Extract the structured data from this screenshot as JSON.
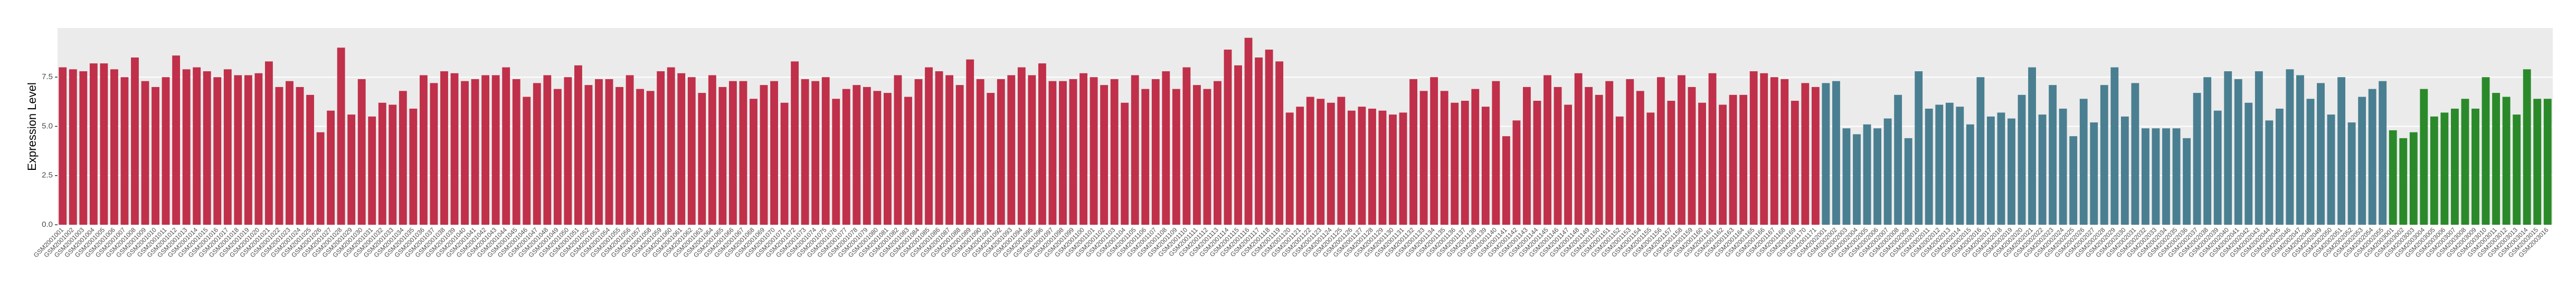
{
  "chart_data": {
    "type": "bar",
    "ylabel": "Expression Level",
    "ylim": [
      0,
      10
    ],
    "yticks": [
      {
        "value": 0,
        "label": "0.0"
      },
      2.5,
      {
        "value": 5,
        "label": "5.0"
      },
      7.5
    ],
    "grid": true,
    "series": [
      {
        "color": "#c0304a",
        "categories": [
          "GSM2001001",
          "GSM2001002",
          "GSM2001003",
          "GSM2001004",
          "GSM2001005",
          "GSM2001006",
          "GSM2001007",
          "GSM2001008",
          "GSM2001009",
          "GSM2001010",
          "GSM2001011",
          "GSM2001012",
          "GSM2001013",
          "GSM2001014",
          "GSM2001015",
          "GSM2001016",
          "GSM2001017",
          "GSM2001018",
          "GSM2001019",
          "GSM2001020",
          "GSM2001021",
          "GSM2001022",
          "GSM2001023",
          "GSM2001024",
          "GSM2001025",
          "GSM2001026",
          "GSM2001027",
          "GSM2001028",
          "GSM2001029",
          "GSM2001030",
          "GSM2001031",
          "GSM2001032",
          "GSM2001033",
          "GSM2001034",
          "GSM2001035",
          "GSM2001036",
          "GSM2001037",
          "GSM2001038",
          "GSM2001039",
          "GSM2001040",
          "GSM2001041",
          "GSM2001042",
          "GSM2001043",
          "GSM2001044",
          "GSM2001045",
          "GSM2001046",
          "GSM2001047",
          "GSM2001048",
          "GSM2001049",
          "GSM2001050",
          "GSM2001051",
          "GSM2001052",
          "GSM2001053",
          "GSM2001054",
          "GSM2001055",
          "GSM2001056",
          "GSM2001057",
          "GSM2001058",
          "GSM2001059",
          "GSM2001060",
          "GSM2001061",
          "GSM2001062",
          "GSM2001063",
          "GSM2001064",
          "GSM2001065",
          "GSM2001066",
          "GSM2001067",
          "GSM2001068",
          "GSM2001069",
          "GSM2001070",
          "GSM2001071",
          "GSM2001072",
          "GSM2001073",
          "GSM2001074",
          "GSM2001075",
          "GSM2001076",
          "GSM2001077",
          "GSM2001078",
          "GSM2001079",
          "GSM2001080",
          "GSM2001081",
          "GSM2001082",
          "GSM2001083",
          "GSM2001084",
          "GSM2001085",
          "GSM2001086",
          "GSM2001087",
          "GSM2001088",
          "GSM2001089",
          "GSM2001090",
          "GSM2001091",
          "GSM2001092",
          "GSM2001093",
          "GSM2001094",
          "GSM2001095",
          "GSM2001096",
          "GSM2001097",
          "GSM2001098",
          "GSM2001099",
          "GSM2001100",
          "GSM2001101",
          "GSM2001102",
          "GSM2001103",
          "GSM2001104",
          "GSM2001105",
          "GSM2001106",
          "GSM2001107",
          "GSM2001108",
          "GSM2001109",
          "GSM2001110",
          "GSM2001111",
          "GSM2001112",
          "GSM2001113",
          "GSM2001114",
          "GSM2001115",
          "GSM2001116",
          "GSM2001117",
          "GSM2001118",
          "GSM2001119",
          "GSM2001120",
          "GSM2001121",
          "GSM2001122",
          "GSM2001123",
          "GSM2001124",
          "GSM2001125",
          "GSM2001126",
          "GSM2001127",
          "GSM2001128",
          "GSM2001129",
          "GSM2001130",
          "GSM2001131",
          "GSM2001132",
          "GSM2001133",
          "GSM2001134",
          "GSM2001135",
          "GSM2001136",
          "GSM2001137",
          "GSM2001138",
          "GSM2001139",
          "GSM2001140",
          "GSM2001141",
          "GSM2001142",
          "GSM2001143",
          "GSM2001144",
          "GSM2001145",
          "GSM2001146",
          "GSM2001147",
          "GSM2001148",
          "GSM2001149",
          "GSM2001150",
          "GSM2001151",
          "GSM2001152",
          "GSM2001153",
          "GSM2001154",
          "GSM2001155",
          "GSM2001156",
          "GSM2001157",
          "GSM2001158",
          "GSM2001159",
          "GSM2001160",
          "GSM2001161",
          "GSM2001162",
          "GSM2001163",
          "GSM2001164",
          "GSM2001165",
          "GSM2001166",
          "GSM2001167",
          "GSM2001168",
          "GSM2001169",
          "GSM2001170",
          "GSM2001171"
        ],
        "values": [
          8.0,
          7.9,
          7.8,
          8.2,
          8.2,
          7.9,
          7.5,
          8.5,
          7.3,
          7.0,
          7.5,
          8.6,
          7.9,
          8.0,
          7.8,
          7.5,
          7.9,
          7.6,
          7.6,
          7.7,
          8.3,
          7.0,
          7.3,
          7.0,
          6.6,
          4.7,
          5.8,
          9.0,
          5.6,
          7.4,
          5.5,
          6.2,
          6.1,
          6.8,
          5.9,
          7.6,
          7.2,
          7.8,
          7.7,
          7.3,
          7.4,
          7.6,
          7.6,
          8.0,
          7.4,
          6.5,
          7.2,
          7.6,
          6.9,
          7.5,
          8.1,
          7.1,
          7.4,
          7.4,
          7.0,
          7.6,
          6.9,
          6.8,
          7.8,
          8.0,
          7.7,
          7.5,
          6.7,
          7.6,
          7.0,
          7.3,
          7.3,
          6.4,
          7.1,
          7.3,
          6.2,
          8.3,
          7.4,
          7.3,
          7.5,
          6.4,
          6.9,
          7.1,
          7.0,
          6.8,
          6.7,
          7.6,
          6.5,
          7.4,
          8.0,
          7.8,
          7.6,
          7.1,
          8.4,
          7.4,
          6.7,
          7.4,
          7.6,
          8.0,
          7.6,
          8.2,
          7.3,
          7.3,
          7.4,
          7.7,
          7.5,
          7.1,
          7.4,
          6.2,
          7.6,
          6.9,
          7.4,
          7.8,
          6.9,
          8.0,
          7.1,
          6.9,
          7.3,
          8.9,
          8.1,
          9.5,
          8.5,
          8.9,
          8.3,
          5.7,
          6.0,
          6.5,
          6.4,
          6.2,
          6.5,
          5.8,
          6.0,
          5.9,
          5.8,
          5.6,
          5.7,
          7.4,
          6.8,
          7.5,
          6.8,
          6.2,
          6.3,
          6.9,
          6.0,
          7.3,
          4.5,
          5.3,
          7.0,
          6.3,
          7.6,
          7.0,
          6.1,
          7.7,
          7.0,
          6.6,
          7.3,
          5.5,
          7.4,
          6.8,
          5.7,
          7.5,
          6.3,
          7.6,
          7.0,
          6.2,
          7.7,
          6.1,
          6.6,
          6.6,
          7.8,
          7.7,
          7.5,
          7.4,
          6.3,
          7.2,
          7.0
        ]
      },
      {
        "color": "#4a7f91",
        "categories": [
          "GSM2002001",
          "GSM2002002",
          "GSM2002003",
          "GSM2002004",
          "GSM2002005",
          "GSM2002006",
          "GSM2002007",
          "GSM2002008",
          "GSM2002009",
          "GSM2002010",
          "GSM2002011",
          "GSM2002012",
          "GSM2002013",
          "GSM2002014",
          "GSM2002015",
          "GSM2002016",
          "GSM2002017",
          "GSM2002018",
          "GSM2002019",
          "GSM2002020",
          "GSM2002021",
          "GSM2002022",
          "GSM2002023",
          "GSM2002024",
          "GSM2002025",
          "GSM2002026",
          "GSM2002027",
          "GSM2002028",
          "GSM2002029",
          "GSM2002030",
          "GSM2002031",
          "GSM2002032",
          "GSM2002033",
          "GSM2002034",
          "GSM2002035",
          "GSM2002036",
          "GSM2002037",
          "GSM2002038",
          "GSM2002039",
          "GSM2002040",
          "GSM2002041",
          "GSM2002042",
          "GSM2002043",
          "GSM2002044",
          "GSM2002045",
          "GSM2002046",
          "GSM2002047",
          "GSM2002048",
          "GSM2002049",
          "GSM2002050",
          "GSM2002051",
          "GSM2002052",
          "GSM2002053",
          "GSM2002054",
          "GSM2002055"
        ],
        "values": [
          7.2,
          7.3,
          4.9,
          4.6,
          5.1,
          4.9,
          5.4,
          6.6,
          4.4,
          7.8,
          5.9,
          6.1,
          6.2,
          6.0,
          5.1,
          7.5,
          5.5,
          5.7,
          5.4,
          6.6,
          8.0,
          5.6,
          7.1,
          5.9,
          4.5,
          6.4,
          5.2,
          7.1,
          8.0,
          5.5,
          7.2,
          4.9,
          4.9,
          4.9,
          4.9,
          4.4,
          6.7,
          7.5,
          5.8,
          7.8,
          7.4,
          6.2,
          7.8,
          5.3,
          5.9,
          7.9,
          7.6,
          6.4,
          7.2,
          5.6,
          7.5,
          5.2,
          6.5,
          6.9,
          7.3
        ]
      },
      {
        "color": "#2a8a2a",
        "categories": [
          "GSM2003001",
          "GSM2003002",
          "GSM2003003",
          "GSM2003004",
          "GSM2003005",
          "GSM2003006",
          "GSM2003007",
          "GSM2003008",
          "GSM2003009",
          "GSM2003010",
          "GSM2003011",
          "GSM2003012",
          "GSM2003013",
          "GSM2003014",
          "GSM2003015",
          "GSM2003016"
        ],
        "values": [
          4.8,
          4.4,
          4.7,
          6.9,
          5.5,
          5.7,
          5.9,
          6.4,
          5.9,
          7.5,
          6.7,
          6.5,
          5.6,
          7.9,
          6.4,
          6.4
        ]
      }
    ]
  }
}
